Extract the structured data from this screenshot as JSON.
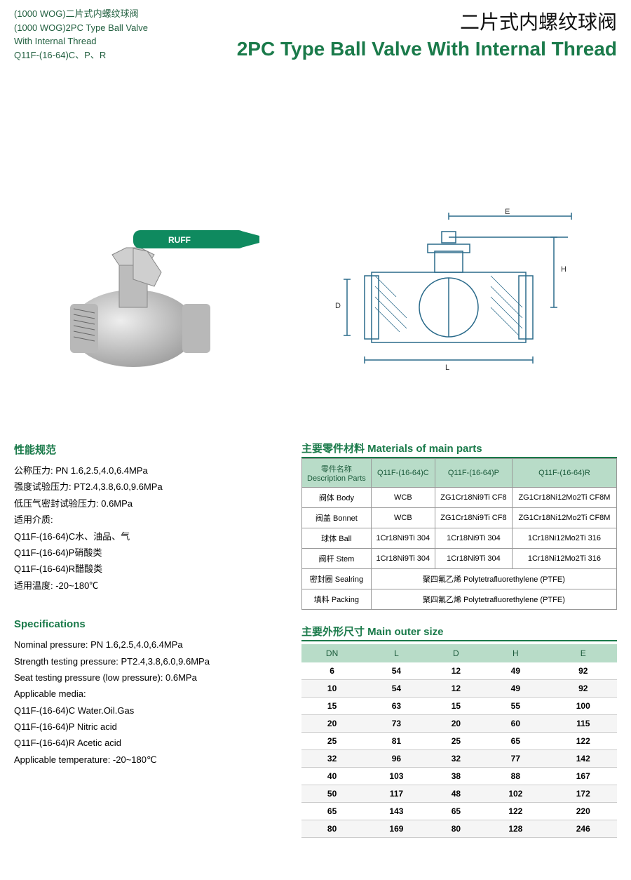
{
  "header": {
    "left_lines": [
      "(1000 WOG)二片式内螺纹球阀",
      "(1000 WOG)2PC Type Ball Valve",
      "With Internal Thread",
      "Q11F-(16-64)C、P、R"
    ],
    "title_cn": "二片式内螺纹球阀",
    "title_en": "2PC Type Ball Valve With Internal Thread"
  },
  "photo": {
    "handle_color": "#0f8a5f",
    "handle_text": "RUFF",
    "body_color": "#c8c8c8"
  },
  "drawing": {
    "line_color": "#2a6a8a",
    "labels": {
      "E": "E",
      "H": "H",
      "D": "D",
      "L": "L"
    }
  },
  "specs_cn": {
    "heading": "性能规范",
    "lines": [
      "公称压力: PN 1.6,2.5,4.0,6.4MPa",
      "强度试验压力: PT2.4,3.8,6.0,9.6MPa",
      "低压气密封试验压力: 0.6MPa",
      "适用介质:",
      "Q11F-(16-64)C水、油品、气",
      "Q11F-(16-64)P硝酸类",
      "Q11F-(16-64)R醋酸类",
      "适用温度: -20~180℃"
    ]
  },
  "specs_en": {
    "heading": "Specifications",
    "lines": [
      "Nominal pressure: PN 1.6,2.5,4.0,6.4MPa",
      "Strength testing pressure: PT2.4,3.8,6.0,9.6MPa",
      "Seat testing pressure (low pressure): 0.6MPa",
      "Applicable media:",
      "Q11F-(16-64)C Water.Oil.Gas",
      "Q11F-(16-64)P Nitric acid",
      "Q11F-(16-64)R Acetic acid",
      "Applicable temperature: -20~180℃"
    ]
  },
  "materials": {
    "heading": "主要零件材料 Materials of main parts",
    "col_head_label": "零件名称\nDescription Parts",
    "columns": [
      "Q11F-(16-64)C",
      "Q11F-(16-64)P",
      "Q11F-(16-64)R"
    ],
    "rows": [
      {
        "label": "阀体 Body",
        "cells": [
          "WCB",
          "ZG1Cr18Ni9Ti CF8",
          "ZG1Cr18Ni12Mo2Ti CF8M"
        ]
      },
      {
        "label": "阀盖 Bonnet",
        "cells": [
          "WCB",
          "ZG1Cr18Ni9Ti CF8",
          "ZG1Cr18Ni12Mo2Ti CF8M"
        ]
      },
      {
        "label": "球体 Ball",
        "cells": [
          "1Cr18Ni9Ti 304",
          "1Cr18Ni9Ti 304",
          "1Cr18Ni12Mo2Ti 316"
        ]
      },
      {
        "label": "阀杆 Stem",
        "cells": [
          "1Cr18Ni9Ti 304",
          "1Cr18Ni9Ti 304",
          "1Cr18Ni12Mo2Ti 316"
        ]
      }
    ],
    "merged_rows": [
      {
        "label": "密封圈 Sealring",
        "value": "聚四氟乙烯 Polytetrafluorethylene (PTFE)"
      },
      {
        "label": "填料 Packing",
        "value": "聚四氟乙烯 Polytetrafluorethylene (PTFE)"
      }
    ]
  },
  "sizes": {
    "heading": "主要外形尺寸 Main outer size",
    "columns": [
      "DN",
      "L",
      "D",
      "H",
      "E"
    ],
    "rows": [
      [
        "6",
        "54",
        "12",
        "49",
        "92"
      ],
      [
        "10",
        "54",
        "12",
        "49",
        "92"
      ],
      [
        "15",
        "63",
        "15",
        "55",
        "100"
      ],
      [
        "20",
        "73",
        "20",
        "60",
        "115"
      ],
      [
        "25",
        "81",
        "25",
        "65",
        "122"
      ],
      [
        "32",
        "96",
        "32",
        "77",
        "142"
      ],
      [
        "40",
        "103",
        "38",
        "88",
        "167"
      ],
      [
        "50",
        "117",
        "48",
        "102",
        "172"
      ],
      [
        "65",
        "143",
        "65",
        "122",
        "220"
      ],
      [
        "80",
        "169",
        "80",
        "128",
        "246"
      ]
    ]
  }
}
